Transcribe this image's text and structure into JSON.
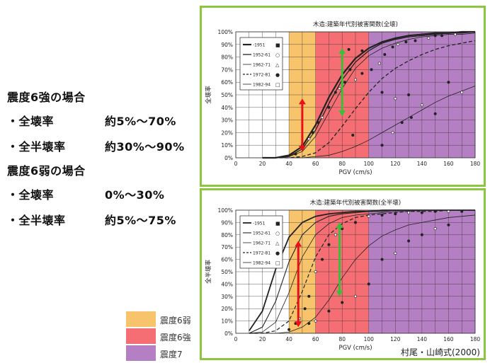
{
  "left_panel": {
    "case1_heading": "震度6強の場合",
    "case1_row1_label": "・全壊率",
    "case1_row1_value": "約5%～70%",
    "case1_row2_label": "・全半壊率",
    "case1_row2_value": "約30%～90%",
    "case2_heading": "震度6弱の場合",
    "case2_row1_label": "・全壊率",
    "case2_row1_value": "0%～30%",
    "case2_row2_label": "・全半壊率",
    "case2_row2_value": "約5%～75%"
  },
  "color_legend": [
    {
      "label": "震度6弱",
      "color": "#f7c36b"
    },
    {
      "label": "震度6強",
      "color": "#f56e73"
    },
    {
      "label": "震度7",
      "color": "#b57fc4"
    }
  ],
  "citation": "村尾・山崎式(2000)",
  "colors": {
    "frame": "#8cc63f",
    "arrow_red": "#e8101a",
    "arrow_green": "#3bbf3b"
  },
  "chart_data": [
    {
      "type": "line",
      "title": "木造:建築年代別被害関数(全壊)",
      "xlabel": "PGV (cm/s)",
      "ylabel": "全壊率",
      "xlim": [
        0,
        180
      ],
      "ylim": [
        0,
        100
      ],
      "x_ticks": [
        "0",
        "20",
        "40",
        "60",
        "80",
        "100",
        "120",
        "140",
        "160",
        "180"
      ],
      "y_ticks": [
        "0%",
        "10%",
        "20%",
        "30%",
        "40%",
        "50%",
        "60%",
        "70%",
        "80%",
        "90%",
        "100%"
      ],
      "x_unit": "cm/s",
      "y_unit": "%",
      "shaded_bands": [
        {
          "label": "震度6弱",
          "x_range": [
            40,
            60
          ],
          "color": "#f7c36b"
        },
        {
          "label": "震度6強",
          "x_range": [
            60,
            100
          ],
          "color": "#f56e73"
        },
        {
          "label": "震度7",
          "x_range": [
            100,
            180
          ],
          "color": "#b57fc4"
        }
      ],
      "grid": true,
      "legend_position": "top-left",
      "x": [
        20,
        30,
        40,
        50,
        60,
        70,
        80,
        90,
        100,
        110,
        120,
        130,
        140,
        150,
        160,
        170,
        180
      ],
      "series": [
        {
          "name": "-1951",
          "marker": "■",
          "dash": "solid",
          "width": 2.2,
          "values": [
            0,
            0,
            2,
            9,
            26,
            48,
            66,
            79,
            87,
            92,
            95,
            97,
            98,
            99,
            99,
            100,
            100
          ]
        },
        {
          "name": "1952-61",
          "marker": "○",
          "dash": "solid",
          "width": 1.3,
          "values": [
            0,
            0,
            1,
            7,
            22,
            43,
            62,
            76,
            85,
            91,
            94,
            96,
            97,
            98,
            99,
            99,
            100
          ]
        },
        {
          "name": "1962-71",
          "marker": "△",
          "dash": "solid",
          "width": 0.8,
          "values": [
            0,
            0,
            1,
            5,
            17,
            36,
            55,
            71,
            81,
            87,
            91,
            94,
            96,
            97,
            98,
            98,
            99
          ]
        },
        {
          "name": "1972-81",
          "marker": "●",
          "dash": "dashed",
          "width": 1.3,
          "values": [
            0,
            0,
            0,
            1,
            4,
            12,
            25,
            39,
            52,
            63,
            71,
            77,
            82,
            86,
            89,
            91,
            93
          ]
        },
        {
          "name": "1982-94",
          "marker": "□",
          "dash": "solid",
          "width": 0.8,
          "values": [
            0,
            0,
            0,
            0,
            1,
            2,
            5,
            9,
            14,
            20,
            26,
            32,
            38,
            44,
            49,
            53,
            57
          ]
        }
      ],
      "observations": [
        {
          "x": 45,
          "y": 3
        },
        {
          "x": 50,
          "y": 10
        },
        {
          "x": 55,
          "y": 15
        },
        {
          "x": 58,
          "y": 20
        },
        {
          "x": 62,
          "y": 28
        },
        {
          "x": 65,
          "y": 32
        },
        {
          "x": 70,
          "y": 40
        },
        {
          "x": 75,
          "y": 52
        },
        {
          "x": 78,
          "y": 55
        },
        {
          "x": 82,
          "y": 60
        },
        {
          "x": 86,
          "y": 70
        },
        {
          "x": 90,
          "y": 62
        },
        {
          "x": 95,
          "y": 67
        },
        {
          "x": 102,
          "y": 70
        },
        {
          "x": 108,
          "y": 75
        },
        {
          "x": 112,
          "y": 82
        },
        {
          "x": 118,
          "y": 88
        },
        {
          "x": 122,
          "y": 90
        },
        {
          "x": 128,
          "y": 92
        },
        {
          "x": 135,
          "y": 93
        },
        {
          "x": 145,
          "y": 95
        },
        {
          "x": 150,
          "y": 97
        },
        {
          "x": 155,
          "y": 97
        },
        {
          "x": 165,
          "y": 98
        },
        {
          "x": 88,
          "y": 18
        },
        {
          "x": 110,
          "y": 10
        },
        {
          "x": 118,
          "y": 20
        },
        {
          "x": 125,
          "y": 28
        },
        {
          "x": 132,
          "y": 32
        },
        {
          "x": 140,
          "y": 42
        },
        {
          "x": 150,
          "y": 35
        },
        {
          "x": 160,
          "y": 60
        },
        {
          "x": 170,
          "y": 52
        },
        {
          "x": 95,
          "y": 85
        },
        {
          "x": 110,
          "y": 52
        },
        {
          "x": 120,
          "y": 47
        },
        {
          "x": 130,
          "y": 50
        },
        {
          "x": 85,
          "y": 86
        }
      ],
      "annotations": [
        {
          "type": "double-arrow",
          "color": "red",
          "x": 50,
          "y_range": [
            5,
            47
          ]
        },
        {
          "type": "double-arrow",
          "color": "green",
          "x": 80,
          "y_range": [
            33,
            87
          ]
        }
      ]
    },
    {
      "type": "line",
      "title": "木造:建築年代別被害関数(全半壊)",
      "xlabel": "PGV (cm/s)",
      "ylabel": "全半壊率",
      "xlim": [
        0,
        180
      ],
      "ylim": [
        0,
        100
      ],
      "x_ticks": [
        "0",
        "20",
        "40",
        "60",
        "80",
        "100",
        "120",
        "140",
        "160",
        "180"
      ],
      "y_ticks": [
        "0%",
        "10%",
        "20%",
        "30%",
        "40%",
        "50%",
        "60%",
        "70%",
        "80%",
        "90%",
        "100%"
      ],
      "x_unit": "cm/s",
      "y_unit": "%",
      "shaded_bands": [
        {
          "label": "震度6弱",
          "x_range": [
            40,
            60
          ],
          "color": "#f7c36b"
        },
        {
          "label": "震度6強",
          "x_range": [
            60,
            100
          ],
          "color": "#f56e73"
        },
        {
          "label": "震度7",
          "x_range": [
            100,
            180
          ],
          "color": "#b57fc4"
        }
      ],
      "grid": true,
      "legend_position": "top-left",
      "x": [
        10,
        20,
        30,
        40,
        50,
        60,
        70,
        80,
        90,
        100,
        110,
        120,
        130,
        140,
        150,
        160,
        170,
        180
      ],
      "series": [
        {
          "name": "-1951",
          "marker": "■",
          "dash": "solid",
          "width": 1.8,
          "values": [
            2,
            18,
            52,
            78,
            90,
            95,
            97,
            98,
            99,
            99,
            100,
            100,
            100,
            100,
            100,
            100,
            100,
            100
          ]
        },
        {
          "name": "1952-61",
          "marker": "○",
          "dash": "solid",
          "width": 1.1,
          "values": [
            0,
            5,
            26,
            58,
            80,
            90,
            95,
            97,
            98,
            99,
            99,
            100,
            100,
            100,
            100,
            100,
            100,
            100
          ]
        },
        {
          "name": "1962-71",
          "marker": "△",
          "dash": "solid",
          "width": 0.8,
          "values": [
            0,
            1,
            9,
            33,
            62,
            80,
            89,
            94,
            96,
            97,
            98,
            99,
            99,
            100,
            100,
            100,
            100,
            100
          ]
        },
        {
          "name": "1972-81",
          "marker": "●",
          "dash": "dashed",
          "width": 1.2,
          "values": [
            0,
            0,
            2,
            10,
            34,
            62,
            80,
            89,
            94,
            96,
            97,
            98,
            99,
            99,
            99,
            100,
            100,
            100
          ]
        },
        {
          "name": "1982-94",
          "marker": "□",
          "dash": "solid",
          "width": 0.8,
          "values": [
            0,
            0,
            0,
            1,
            5,
            13,
            27,
            45,
            60,
            71,
            79,
            84,
            88,
            90,
            92,
            94,
            95,
            96
          ]
        }
      ],
      "observations": [
        {
          "x": 40,
          "y": 3
        },
        {
          "x": 45,
          "y": 8
        },
        {
          "x": 48,
          "y": 12
        },
        {
          "x": 52,
          "y": 20
        },
        {
          "x": 55,
          "y": 30
        },
        {
          "x": 60,
          "y": 50
        },
        {
          "x": 65,
          "y": 60
        },
        {
          "x": 70,
          "y": 72
        },
        {
          "x": 75,
          "y": 80
        },
        {
          "x": 80,
          "y": 85
        },
        {
          "x": 90,
          "y": 90
        },
        {
          "x": 100,
          "y": 95
        },
        {
          "x": 110,
          "y": 96
        },
        {
          "x": 120,
          "y": 97
        },
        {
          "x": 130,
          "y": 98
        },
        {
          "x": 140,
          "y": 98
        },
        {
          "x": 150,
          "y": 99
        },
        {
          "x": 160,
          "y": 99
        },
        {
          "x": 170,
          "y": 99
        },
        {
          "x": 55,
          "y": 8
        },
        {
          "x": 60,
          "y": 10
        },
        {
          "x": 70,
          "y": 18
        },
        {
          "x": 80,
          "y": 25
        },
        {
          "x": 90,
          "y": 30
        },
        {
          "x": 100,
          "y": 40
        },
        {
          "x": 110,
          "y": 60
        },
        {
          "x": 120,
          "y": 65
        },
        {
          "x": 130,
          "y": 75
        },
        {
          "x": 140,
          "y": 80
        },
        {
          "x": 150,
          "y": 85
        },
        {
          "x": 160,
          "y": 88
        }
      ],
      "annotations": [
        {
          "type": "double-arrow",
          "color": "red",
          "x": 47,
          "y_range": [
            5,
            75
          ]
        },
        {
          "type": "double-arrow",
          "color": "green",
          "x": 78,
          "y_range": [
            30,
            90
          ]
        }
      ]
    }
  ]
}
